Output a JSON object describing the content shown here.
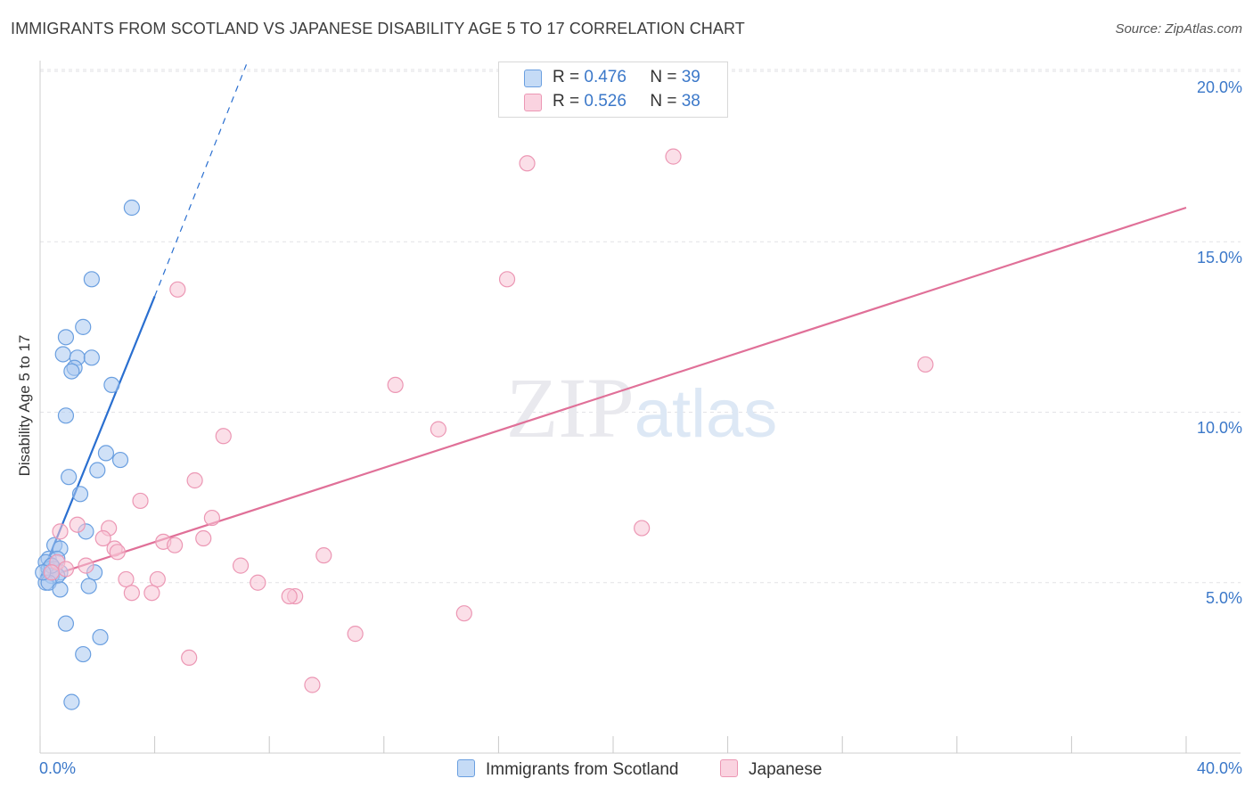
{
  "header": {
    "title": "IMMIGRANTS FROM SCOTLAND VS JAPANESE DISABILITY AGE 5 TO 17 CORRELATION CHART",
    "source": "Source: ZipAtlas.com"
  },
  "watermark": "ZIPatlas",
  "colors": {
    "scotland_fill": "#a9c8f0",
    "scotland_stroke": "#6a9fe0",
    "scotland_line": "#2a6fd0",
    "japanese_fill": "#f7c4d5",
    "japanese_stroke": "#ec97b4",
    "japanese_line": "#e07098",
    "tick_text": "#3b78c9"
  },
  "legend": {
    "r_label": "R =",
    "n_label": "N =",
    "series": [
      {
        "name": "Immigrants from Scotland",
        "r": "0.476",
        "n": "39"
      },
      {
        "name": "Japanese",
        "r": "0.526",
        "n": "38"
      }
    ]
  },
  "chart_data": {
    "type": "scatter",
    "title": "IMMIGRANTS FROM SCOTLAND VS JAPANESE DISABILITY AGE 5 TO 17 CORRELATION CHART",
    "xlabel": "",
    "ylabel": "Disability Age 5 to 17",
    "xlim": [
      0,
      40
    ],
    "ylim": [
      0,
      21
    ],
    "x_tick_labels": [
      "0.0%",
      "40.0%"
    ],
    "y_ticks": [
      {
        "value": 5,
        "label": "5.0%"
      },
      {
        "value": 10,
        "label": "10.0%"
      },
      {
        "value": 15,
        "label": "15.0%"
      },
      {
        "value": 20,
        "label": "20.0%"
      }
    ],
    "grid": true,
    "series": [
      {
        "name": "Immigrants from Scotland",
        "points": [
          [
            3.2,
            16.0
          ],
          [
            1.8,
            13.9
          ],
          [
            1.5,
            12.5
          ],
          [
            0.9,
            12.2
          ],
          [
            0.8,
            11.7
          ],
          [
            1.3,
            11.6
          ],
          [
            1.8,
            11.6
          ],
          [
            1.2,
            11.3
          ],
          [
            1.1,
            11.2
          ],
          [
            2.5,
            10.8
          ],
          [
            0.9,
            9.9
          ],
          [
            2.3,
            8.8
          ],
          [
            2.8,
            8.6
          ],
          [
            2.0,
            8.3
          ],
          [
            1.0,
            8.1
          ],
          [
            1.4,
            7.6
          ],
          [
            1.6,
            6.5
          ],
          [
            0.5,
            6.1
          ],
          [
            0.7,
            6.0
          ],
          [
            0.3,
            5.7
          ],
          [
            0.6,
            5.7
          ],
          [
            0.2,
            5.6
          ],
          [
            0.4,
            5.5
          ],
          [
            0.3,
            5.4
          ],
          [
            0.5,
            5.4
          ],
          [
            0.7,
            5.3
          ],
          [
            1.9,
            5.3
          ],
          [
            0.4,
            5.2
          ],
          [
            0.6,
            5.2
          ],
          [
            0.2,
            5.0
          ],
          [
            0.3,
            5.0
          ],
          [
            1.7,
            4.9
          ],
          [
            0.7,
            4.8
          ],
          [
            0.9,
            3.8
          ],
          [
            2.1,
            3.4
          ],
          [
            1.5,
            2.9
          ],
          [
            1.1,
            1.5
          ],
          [
            0.4,
            5.5
          ],
          [
            0.1,
            5.3
          ]
        ],
        "trend": {
          "x0": 0.0,
          "y0": 5.1,
          "x1": 4.0,
          "y1": 13.4,
          "dash_x1": 7.2,
          "dash_y1": 20.2
        }
      },
      {
        "name": "Japanese",
        "points": [
          [
            22.1,
            17.5
          ],
          [
            17.0,
            17.3
          ],
          [
            4.8,
            13.6
          ],
          [
            16.3,
            13.9
          ],
          [
            30.9,
            11.4
          ],
          [
            12.4,
            10.8
          ],
          [
            13.9,
            9.5
          ],
          [
            6.4,
            9.3
          ],
          [
            5.4,
            8.0
          ],
          [
            3.5,
            7.4
          ],
          [
            6.0,
            6.9
          ],
          [
            1.3,
            6.7
          ],
          [
            0.7,
            6.5
          ],
          [
            2.4,
            6.6
          ],
          [
            2.2,
            6.3
          ],
          [
            4.3,
            6.2
          ],
          [
            4.7,
            6.1
          ],
          [
            2.6,
            6.0
          ],
          [
            2.7,
            5.9
          ],
          [
            5.7,
            6.3
          ],
          [
            9.9,
            5.8
          ],
          [
            21.0,
            6.6
          ],
          [
            7.0,
            5.5
          ],
          [
            1.6,
            5.5
          ],
          [
            0.6,
            5.6
          ],
          [
            0.9,
            5.4
          ],
          [
            0.4,
            5.3
          ],
          [
            3.0,
            5.1
          ],
          [
            4.1,
            5.1
          ],
          [
            7.6,
            5.0
          ],
          [
            3.2,
            4.7
          ],
          [
            3.9,
            4.7
          ],
          [
            8.9,
            4.6
          ],
          [
            8.7,
            4.6
          ],
          [
            14.8,
            4.1
          ],
          [
            11.0,
            3.5
          ],
          [
            5.2,
            2.8
          ],
          [
            9.5,
            2.0
          ]
        ],
        "trend": {
          "x0": 0.0,
          "y0": 5.1,
          "x1": 40.0,
          "y1": 16.0
        }
      }
    ]
  }
}
